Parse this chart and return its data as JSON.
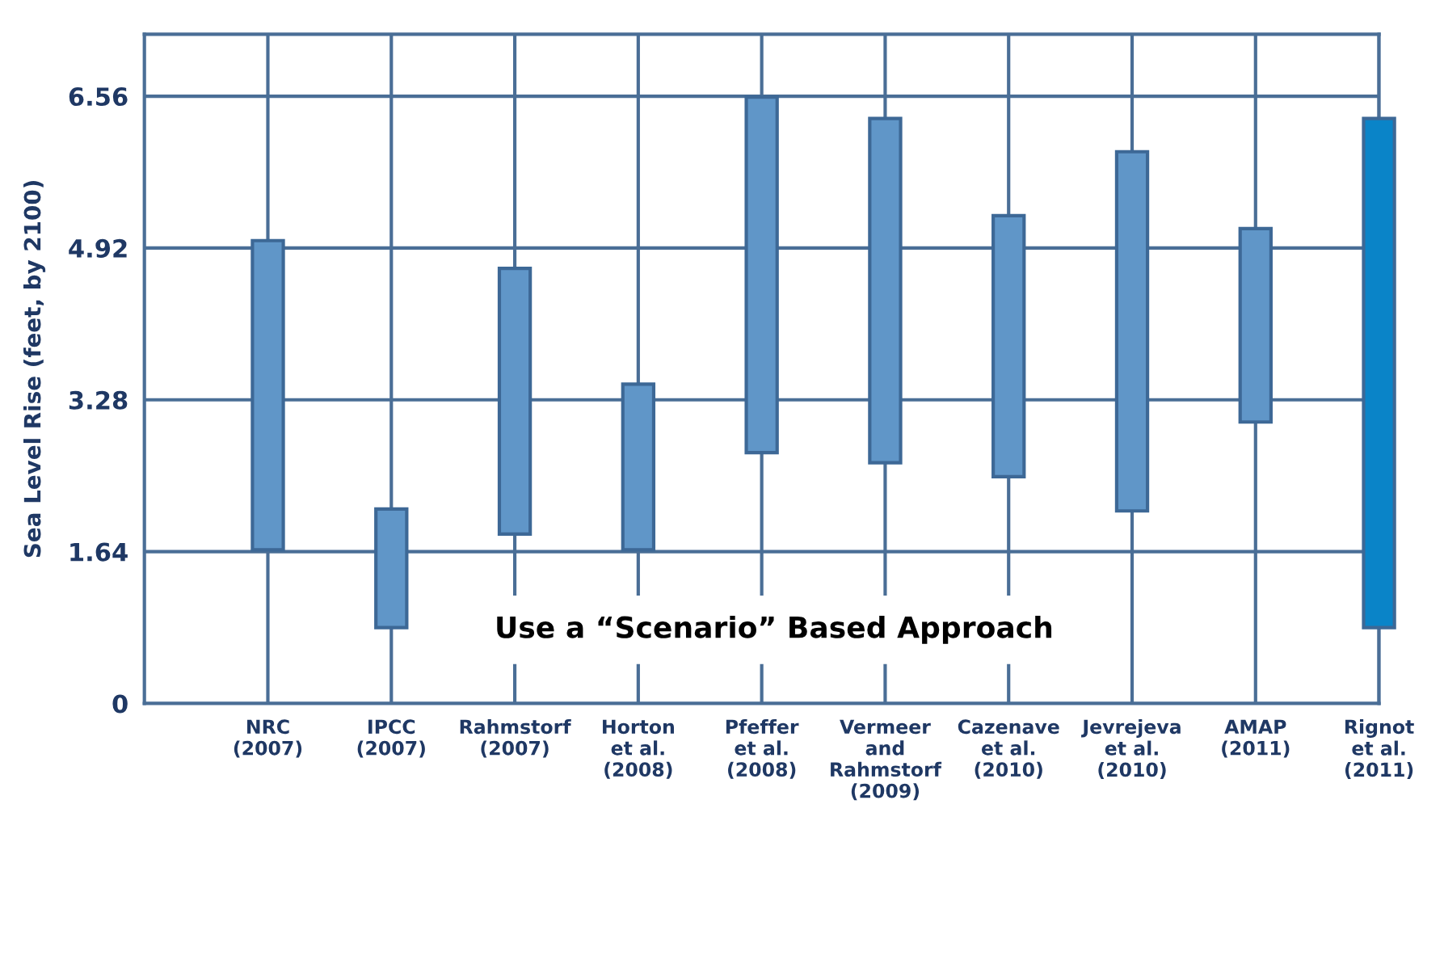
{
  "chart_data": {
    "type": "bar",
    "ylabel": "Sea Level Rise (feet, by 2100)",
    "categories": [
      "NRC\n(2007)",
      "IPCC\n(2007)",
      "Rahmstorf\n(2007)",
      "Horton\net al.\n(2008)",
      "Pfeffer\net al.\n(2008)",
      "Vermeer\nand\nRahmstorf\n(2009)",
      "Cazenave\net al.\n(2010)",
      "Jevrejeva\net al.\n(2010)",
      "AMAP\n(2011)",
      "Rignot\net al.\n(2011)"
    ],
    "base": [
      1.66,
      0.82,
      1.83,
      1.66,
      2.71,
      2.6,
      2.45,
      2.08,
      3.04,
      0.82
    ],
    "values": [
      3.34,
      1.28,
      2.87,
      1.79,
      3.84,
      3.72,
      2.82,
      3.88,
      2.09,
      5.5
    ],
    "colors": [
      "#6096c8",
      "#6096c8",
      "#6096c8",
      "#6096c8",
      "#6096c8",
      "#6096c8",
      "#6096c8",
      "#6096c8",
      "#6096c8",
      "#0a84c8"
    ],
    "ylim": [
      0,
      7.23
    ],
    "yticks": [
      0,
      1.64,
      3.28,
      4.92,
      6.56
    ],
    "grid": true,
    "annotations": [
      "Use a “Scenario” Based Approach"
    ]
  }
}
